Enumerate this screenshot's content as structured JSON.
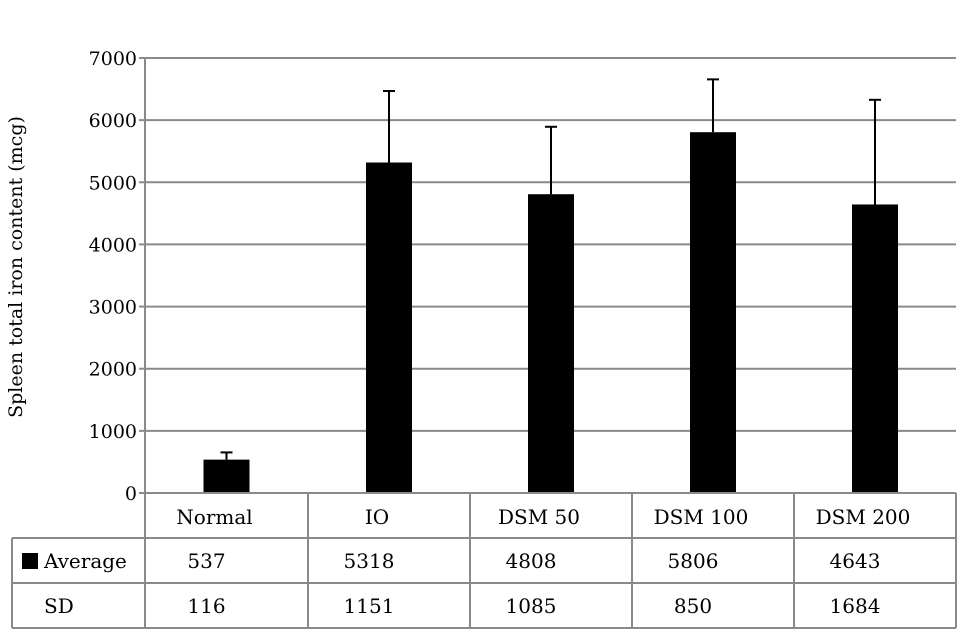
{
  "chart_data": {
    "type": "bar",
    "title": "",
    "xlabel": "",
    "ylabel": "Spleen total iron content (mcg)",
    "ylim": [
      0,
      7000
    ],
    "yticks": [
      0,
      1000,
      2000,
      3000,
      4000,
      5000,
      6000,
      7000
    ],
    "grid": true,
    "categories": [
      "Normal",
      "IO",
      "DSM 50",
      "DSM 100",
      "DSM 200"
    ],
    "series": [
      {
        "name": "Average",
        "values": [
          537,
          5318,
          4808,
          5806,
          4643
        ],
        "sd": [
          116,
          1151,
          1085,
          850,
          1684
        ],
        "color": "#000000"
      }
    ],
    "table": {
      "rows": [
        {
          "label": "Average",
          "values": [
            "537",
            "5318",
            "4808",
            "5806",
            "4643"
          ]
        },
        {
          "label": "SD",
          "values": [
            "116",
            "1151",
            "1085",
            "850",
            "1684"
          ]
        }
      ]
    }
  }
}
